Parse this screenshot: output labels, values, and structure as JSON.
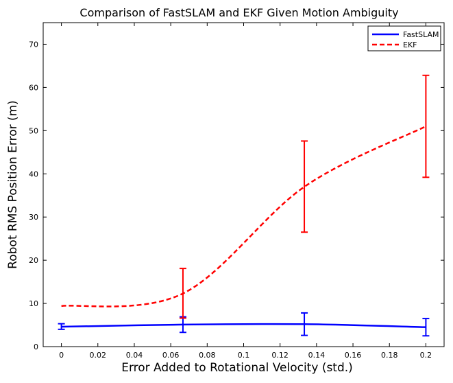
{
  "chart_data": {
    "type": "line",
    "title": "Comparison of FastSLAM and EKF Given Motion Ambiguity",
    "xlabel": "Error Added to Rotational Velocity (std.)",
    "ylabel": "Robot RMS Position Error (m)",
    "xlim": [
      -0.01,
      0.21
    ],
    "ylim": [
      0,
      75
    ],
    "xticks": [
      0,
      0.02,
      0.04,
      0.06,
      0.08,
      0.1,
      0.12,
      0.14,
      0.16,
      0.18,
      0.2
    ],
    "xtick_labels": [
      "0",
      "0.02",
      "0.04",
      "0.06",
      "0.08",
      "0.1",
      "0.12",
      "0.14",
      "0.16",
      "0.18",
      "0.2"
    ],
    "yticks": [
      0,
      10,
      20,
      30,
      40,
      50,
      60,
      70
    ],
    "ytick_labels": [
      "0",
      "10",
      "20",
      "30",
      "40",
      "50",
      "60",
      "70"
    ],
    "grid": false,
    "legend_position": "top-right",
    "series": [
      {
        "name": "FastSLAM",
        "color": "#0000ff",
        "dash": "solid",
        "x": [
          0,
          0.0667,
          0.1333,
          0.2
        ],
        "y": [
          4.6,
          5.1,
          5.2,
          4.5
        ],
        "err_low": [
          4.0,
          3.3,
          2.6,
          2.5
        ],
        "err_high": [
          5.3,
          6.9,
          7.8,
          6.5
        ]
      },
      {
        "name": "EKF",
        "color": "#ff0000",
        "dash": "dashed",
        "x": [
          0,
          0.0667,
          0.1333,
          0.2
        ],
        "y": [
          9.4,
          12.3,
          37.0,
          51.0
        ],
        "err_low": [
          9.4,
          6.6,
          26.5,
          39.2
        ],
        "err_high": [
          9.4,
          18.1,
          47.6,
          62.8
        ]
      }
    ]
  }
}
